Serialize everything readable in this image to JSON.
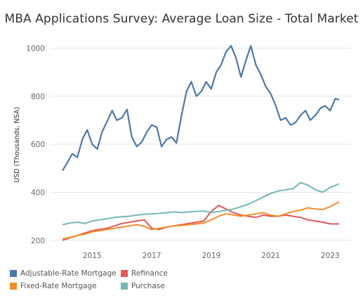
{
  "title": "MBA Applications Survey: Average Loan Size - Total Market",
  "chart_data": {
    "type": "line",
    "title": "MBA Applications Survey: Average Loan Size - Total Market",
    "ylabel": "USD (Thousands, NSA)",
    "xlabel": "",
    "ylim": [
      170,
      1060
    ],
    "xlim": [
      2013.6,
      2023.7
    ],
    "yticks": [
      200,
      400,
      600,
      800,
      1000
    ],
    "xticks": [
      2015,
      2017,
      2019,
      2021,
      2023
    ],
    "grid": "horizontal",
    "legend_position": "bottom-left",
    "series": [
      {
        "name": "Adjustable-Rate Mortgage",
        "color": "#4e79a7",
        "x": [
          2014.0,
          2014.17,
          2014.33,
          2014.5,
          2014.67,
          2014.83,
          2015.0,
          2015.17,
          2015.33,
          2015.5,
          2015.67,
          2015.83,
          2016.0,
          2016.17,
          2016.33,
          2016.5,
          2016.67,
          2016.83,
          2017.0,
          2017.17,
          2017.33,
          2017.5,
          2017.67,
          2017.83,
          2018.0,
          2018.17,
          2018.33,
          2018.5,
          2018.67,
          2018.83,
          2019.0,
          2019.17,
          2019.33,
          2019.5,
          2019.67,
          2019.83,
          2020.0,
          2020.17,
          2020.33,
          2020.5,
          2020.67,
          2020.83,
          2021.0,
          2021.17,
          2021.33,
          2021.5,
          2021.67,
          2021.83,
          2022.0,
          2022.17,
          2022.33,
          2022.5,
          2022.67,
          2022.83,
          2023.0,
          2023.17,
          2023.3
        ],
        "values": [
          490,
          525,
          560,
          545,
          620,
          660,
          600,
          580,
          650,
          695,
          740,
          700,
          710,
          745,
          630,
          590,
          610,
          650,
          680,
          670,
          590,
          620,
          630,
          605,
          720,
          820,
          860,
          800,
          820,
          860,
          830,
          900,
          930,
          985,
          1010,
          960,
          880,
          950,
          1010,
          930,
          890,
          840,
          810,
          760,
          700,
          710,
          680,
          690,
          720,
          740,
          700,
          720,
          750,
          760,
          740,
          790,
          785
        ],
        "ylim_note": ""
      },
      {
        "name": "Refinance",
        "color": "#e15759",
        "x": [
          2014.0,
          2014.25,
          2014.5,
          2014.75,
          2015.0,
          2015.25,
          2015.5,
          2015.75,
          2016.0,
          2016.25,
          2016.5,
          2016.75,
          2017.0,
          2017.25,
          2017.5,
          2017.75,
          2018.0,
          2018.25,
          2018.5,
          2018.75,
          2019.0,
          2019.25,
          2019.5,
          2019.75,
          2020.0,
          2020.25,
          2020.5,
          2020.75,
          2021.0,
          2021.25,
          2021.5,
          2021.75,
          2022.0,
          2022.25,
          2022.5,
          2022.75,
          2023.0,
          2023.3
        ],
        "values": [
          200,
          210,
          220,
          230,
          240,
          245,
          250,
          260,
          270,
          275,
          280,
          285,
          250,
          245,
          255,
          260,
          265,
          270,
          275,
          280,
          320,
          345,
          330,
          315,
          305,
          300,
          295,
          305,
          300,
          300,
          305,
          300,
          295,
          285,
          280,
          275,
          268,
          268
        ]
      },
      {
        "name": "Fixed-Rate Mortgage",
        "color": "#f28e2b",
        "x": [
          2014.0,
          2014.25,
          2014.5,
          2014.75,
          2015.0,
          2015.25,
          2015.5,
          2015.75,
          2016.0,
          2016.25,
          2016.5,
          2016.75,
          2017.0,
          2017.25,
          2017.5,
          2017.75,
          2018.0,
          2018.25,
          2018.5,
          2018.75,
          2019.0,
          2019.25,
          2019.5,
          2019.75,
          2020.0,
          2020.25,
          2020.5,
          2020.75,
          2021.0,
          2021.25,
          2021.5,
          2021.75,
          2022.0,
          2022.25,
          2022.5,
          2022.75,
          2023.0,
          2023.3
        ],
        "values": [
          205,
          212,
          220,
          225,
          235,
          240,
          245,
          250,
          255,
          260,
          265,
          258,
          245,
          250,
          255,
          260,
          262,
          265,
          268,
          272,
          285,
          300,
          310,
          305,
          300,
          305,
          310,
          315,
          305,
          300,
          310,
          320,
          325,
          335,
          330,
          328,
          340,
          360
        ]
      },
      {
        "name": "Purchase",
        "color": "#76b7b2",
        "x": [
          2014.0,
          2014.25,
          2014.5,
          2014.75,
          2015.0,
          2015.25,
          2015.5,
          2015.75,
          2016.0,
          2016.25,
          2016.5,
          2016.75,
          2017.0,
          2017.25,
          2017.5,
          2017.75,
          2018.0,
          2018.25,
          2018.5,
          2018.75,
          2019.0,
          2019.25,
          2019.5,
          2019.75,
          2020.0,
          2020.25,
          2020.5,
          2020.75,
          2021.0,
          2021.25,
          2021.5,
          2021.75,
          2022.0,
          2022.25,
          2022.5,
          2022.75,
          2023.0,
          2023.3
        ],
        "values": [
          265,
          272,
          275,
          270,
          280,
          285,
          290,
          295,
          298,
          300,
          305,
          308,
          310,
          312,
          315,
          318,
          315,
          318,
          320,
          322,
          315,
          320,
          325,
          330,
          340,
          350,
          365,
          380,
          395,
          405,
          410,
          415,
          440,
          430,
          410,
          400,
          420,
          435
        ]
      }
    ]
  }
}
